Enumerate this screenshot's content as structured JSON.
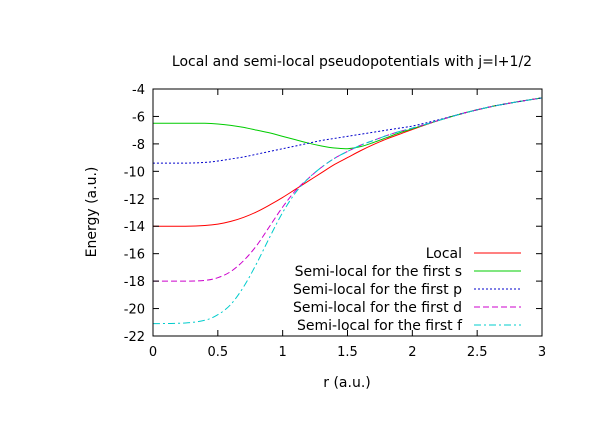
{
  "chart_data": {
    "type": "line",
    "title": "Local and semi-local pseudopotentials with j=l+1/2",
    "xlabel": "r (a.u.)",
    "ylabel": "Energy (a.u.)",
    "xlim": [
      0,
      3
    ],
    "ylim": [
      -22,
      -4
    ],
    "x_ticks": [
      0,
      0.5,
      1,
      1.5,
      2,
      2.5,
      3
    ],
    "y_ticks": [
      -22,
      -20,
      -18,
      -16,
      -14,
      -12,
      -10,
      -8,
      -6,
      -4
    ],
    "grid": false,
    "legend_position": "bottom-right",
    "x": [
      0,
      0.25,
      0.4,
      0.5,
      0.6,
      0.7,
      0.8,
      0.9,
      1.0,
      1.1,
      1.2,
      1.3,
      1.4,
      1.5,
      1.6,
      1.7,
      1.8,
      1.9,
      2.0,
      2.2,
      2.4,
      2.6,
      2.8,
      3.0
    ],
    "series": [
      {
        "name": "Local",
        "color": "#ff0000",
        "dash": "solid",
        "values": [
          -14.0,
          -14.0,
          -13.95,
          -13.85,
          -13.65,
          -13.35,
          -12.95,
          -12.45,
          -11.9,
          -11.3,
          -10.7,
          -10.1,
          -9.5,
          -9.0,
          -8.5,
          -8.05,
          -7.65,
          -7.3,
          -6.95,
          -6.3,
          -5.75,
          -5.3,
          -4.95,
          -4.65
        ]
      },
      {
        "name": "Semi-local for the first s",
        "color": "#00cc00",
        "dash": "solid",
        "values": [
          -6.5,
          -6.5,
          -6.5,
          -6.55,
          -6.65,
          -6.8,
          -7.0,
          -7.2,
          -7.45,
          -7.7,
          -7.95,
          -8.15,
          -8.3,
          -8.35,
          -8.2,
          -7.9,
          -7.55,
          -7.2,
          -6.9,
          -6.3,
          -5.75,
          -5.3,
          -4.95,
          -4.65
        ]
      },
      {
        "name": "Semi-local for the first p",
        "color": "#0000cc",
        "dash": "dotted",
        "values": [
          -9.4,
          -9.4,
          -9.35,
          -9.25,
          -9.1,
          -8.95,
          -8.75,
          -8.55,
          -8.35,
          -8.15,
          -7.95,
          -7.75,
          -7.6,
          -7.45,
          -7.3,
          -7.15,
          -7.0,
          -6.85,
          -6.7,
          -6.25,
          -5.75,
          -5.3,
          -4.95,
          -4.65
        ]
      },
      {
        "name": "Semi-local for the first d",
        "color": "#cc00cc",
        "dash": "dashed",
        "values": [
          -18.0,
          -18.0,
          -17.95,
          -17.75,
          -17.3,
          -16.5,
          -15.4,
          -14.0,
          -12.6,
          -11.4,
          -10.5,
          -9.7,
          -9.05,
          -8.55,
          -8.1,
          -7.75,
          -7.4,
          -7.1,
          -6.85,
          -6.3,
          -5.75,
          -5.3,
          -4.95,
          -4.65
        ]
      },
      {
        "name": "Semi-local for the first f",
        "color": "#00cccc",
        "dash": "dashdot",
        "values": [
          -21.1,
          -21.05,
          -20.85,
          -20.45,
          -19.7,
          -18.4,
          -16.7,
          -14.8,
          -13.0,
          -11.55,
          -10.5,
          -9.7,
          -9.05,
          -8.55,
          -8.1,
          -7.75,
          -7.4,
          -7.1,
          -6.85,
          -6.3,
          -5.75,
          -5.3,
          -4.95,
          -4.65
        ]
      }
    ]
  }
}
